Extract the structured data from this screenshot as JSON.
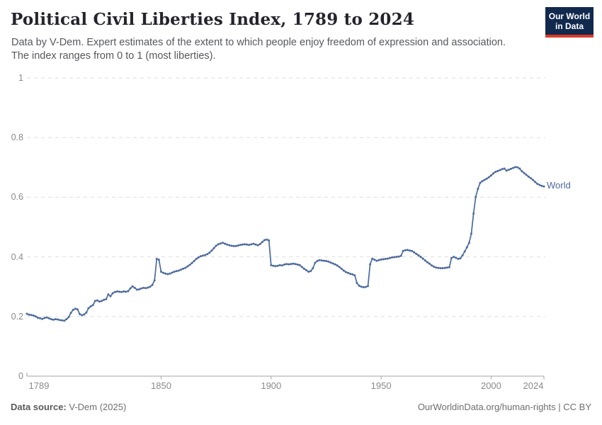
{
  "header": {
    "title": "Political Civil Liberties Index, 1789 to 2024",
    "subtitle": "Data by V-Dem. Expert estimates of the extent to which people enjoy freedom of expression and association. The index ranges from 0 to 1 (most liberties).",
    "logo": {
      "line1": "Our World",
      "line2": "in Data",
      "bg_color": "#12294e",
      "stripe_color": "#dc3b2a"
    }
  },
  "footer": {
    "source_label": "Data source:",
    "source_value": " V-Dem (2025)",
    "url": "OurWorldinData.org/human-rights",
    "separator": " | ",
    "license": "CC BY"
  },
  "chart_data": {
    "type": "line",
    "title": "Political Civil Liberties Index, 1789 to 2024",
    "xlabel": "",
    "ylabel": "",
    "xlim": [
      1789,
      2024
    ],
    "ylim": [
      0,
      1
    ],
    "grid": "horizontal-dashed",
    "legend_position": "right-of-line-end",
    "x_ticks": [
      {
        "label": "1789",
        "year": 1789
      },
      {
        "label": "1850",
        "year": 1850
      },
      {
        "label": "1900",
        "year": 1900
      },
      {
        "label": "1950",
        "year": 1950
      },
      {
        "label": "2000",
        "year": 2000
      },
      {
        "label": "2024",
        "year": 2024
      }
    ],
    "y_ticks": [
      {
        "label": "0",
        "value": 0
      },
      {
        "label": "0.2",
        "value": 0.2
      },
      {
        "label": "0.4",
        "value": 0.4
      },
      {
        "label": "0.6",
        "value": 0.6
      },
      {
        "label": "0.8",
        "value": 0.8
      },
      {
        "label": "1",
        "value": 1
      }
    ],
    "series": [
      {
        "name": "World",
        "color": "#4C6A9E",
        "x_start": 1789,
        "x_step": 1,
        "values": [
          0.209,
          0.206,
          0.205,
          0.203,
          0.2,
          0.196,
          0.194,
          0.192,
          0.195,
          0.197,
          0.194,
          0.191,
          0.189,
          0.191,
          0.19,
          0.188,
          0.187,
          0.186,
          0.191,
          0.198,
          0.212,
          0.222,
          0.226,
          0.224,
          0.208,
          0.204,
          0.207,
          0.213,
          0.228,
          0.234,
          0.238,
          0.252,
          0.254,
          0.25,
          0.252,
          0.256,
          0.258,
          0.274,
          0.268,
          0.278,
          0.282,
          0.284,
          0.283,
          0.282,
          0.284,
          0.283,
          0.285,
          0.294,
          0.301,
          0.296,
          0.29,
          0.291,
          0.294,
          0.296,
          0.295,
          0.297,
          0.3,
          0.306,
          0.321,
          0.393,
          0.39,
          0.35,
          0.346,
          0.344,
          0.342,
          0.344,
          0.347,
          0.35,
          0.352,
          0.354,
          0.357,
          0.36,
          0.363,
          0.368,
          0.373,
          0.379,
          0.386,
          0.393,
          0.398,
          0.402,
          0.404,
          0.406,
          0.409,
          0.414,
          0.421,
          0.429,
          0.437,
          0.442,
          0.445,
          0.447,
          0.444,
          0.441,
          0.439,
          0.437,
          0.436,
          0.436,
          0.438,
          0.44,
          0.441,
          0.442,
          0.441,
          0.44,
          0.442,
          0.444,
          0.441,
          0.439,
          0.443,
          0.45,
          0.456,
          0.458,
          0.455,
          0.372,
          0.37,
          0.369,
          0.37,
          0.372,
          0.371,
          0.374,
          0.376,
          0.375,
          0.376,
          0.377,
          0.376,
          0.374,
          0.372,
          0.366,
          0.36,
          0.355,
          0.35,
          0.352,
          0.362,
          0.38,
          0.386,
          0.389,
          0.388,
          0.387,
          0.386,
          0.384,
          0.381,
          0.378,
          0.375,
          0.371,
          0.366,
          0.36,
          0.354,
          0.349,
          0.346,
          0.343,
          0.341,
          0.338,
          0.312,
          0.303,
          0.3,
          0.298,
          0.299,
          0.302,
          0.375,
          0.394,
          0.39,
          0.387,
          0.389,
          0.391,
          0.392,
          0.393,
          0.394,
          0.396,
          0.398,
          0.399,
          0.4,
          0.401,
          0.403,
          0.42,
          0.422,
          0.423,
          0.421,
          0.42,
          0.415,
          0.41,
          0.405,
          0.4,
          0.394,
          0.388,
          0.382,
          0.377,
          0.371,
          0.367,
          0.364,
          0.363,
          0.362,
          0.362,
          0.363,
          0.364,
          0.365,
          0.396,
          0.4,
          0.397,
          0.393,
          0.395,
          0.405,
          0.418,
          0.432,
          0.447,
          0.478,
          0.545,
          0.601,
          0.628,
          0.648,
          0.654,
          0.658,
          0.662,
          0.667,
          0.673,
          0.68,
          0.685,
          0.688,
          0.691,
          0.694,
          0.696,
          0.689,
          0.692,
          0.695,
          0.698,
          0.701,
          0.7,
          0.696,
          0.687,
          0.681,
          0.675,
          0.669,
          0.664,
          0.658,
          0.651,
          0.645,
          0.641,
          0.638,
          0.636
        ]
      }
    ]
  }
}
